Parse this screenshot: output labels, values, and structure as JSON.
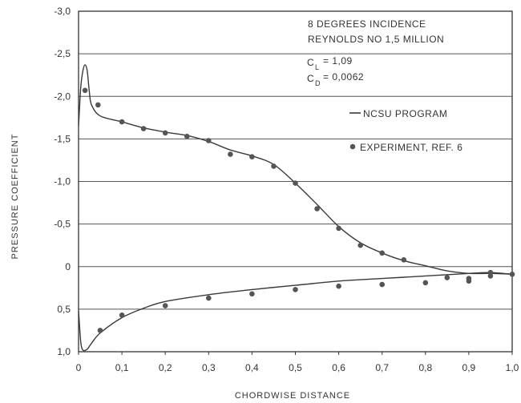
{
  "chart_data": {
    "type": "line",
    "xlabel": "CHORDWISE DISTANCE",
    "ylabel": "PRESSURE COEFFICIENT",
    "xlim": [
      0,
      1.0
    ],
    "ylim": [
      1.0,
      -3.0
    ],
    "y_inverted": true,
    "grid": "horizontal",
    "x_ticks": [
      0,
      0.1,
      0.2,
      0.3,
      0.4,
      0.5,
      0.6,
      0.7,
      0.8,
      0.9,
      1.0
    ],
    "x_tick_labels": [
      "0",
      "0,1",
      "0,2",
      "0,3",
      "0,4",
      "0,5",
      "0,6",
      "0,7",
      "0,8",
      "0,9",
      "1,0"
    ],
    "y_ticks": [
      -3.0,
      -2.5,
      -2.0,
      -1.5,
      -1.0,
      -0.5,
      0,
      0.5,
      1.0
    ],
    "y_tick_labels": [
      "-3,0",
      "-2,5",
      "-2,0",
      "-1,5",
      "-1,0",
      "-0,5",
      "0",
      "0,5",
      "1,0"
    ],
    "annotations": {
      "line1": "8 DEGREES INCIDENCE",
      "line2": "REYNOLDS NO 1,5 MILLION",
      "cl_symbol": "C",
      "cl_sub": "L",
      "cl_value": "= 1,09",
      "cd_symbol": "C",
      "cd_sub": "D",
      "cd_value": "= 0,0062"
    },
    "legend": {
      "placement": "right",
      "line_label": "NCSU PROGRAM",
      "points_label": "EXPERIMENT, REF. 6"
    },
    "series": [
      {
        "name": "NCSU PROGRAM",
        "kind": "line",
        "upper_surface": [
          [
            0.0,
            -1.65
          ],
          [
            0.005,
            -2.1
          ],
          [
            0.01,
            -2.3
          ],
          [
            0.015,
            -2.37
          ],
          [
            0.02,
            -2.3
          ],
          [
            0.025,
            -2.05
          ],
          [
            0.03,
            -1.9
          ],
          [
            0.05,
            -1.77
          ],
          [
            0.1,
            -1.7
          ],
          [
            0.15,
            -1.63
          ],
          [
            0.2,
            -1.58
          ],
          [
            0.25,
            -1.54
          ],
          [
            0.3,
            -1.47
          ],
          [
            0.35,
            -1.37
          ],
          [
            0.4,
            -1.3
          ],
          [
            0.45,
            -1.2
          ],
          [
            0.5,
            -0.98
          ],
          [
            0.55,
            -0.73
          ],
          [
            0.6,
            -0.47
          ],
          [
            0.65,
            -0.28
          ],
          [
            0.7,
            -0.16
          ],
          [
            0.75,
            -0.07
          ],
          [
            0.8,
            -0.01
          ],
          [
            0.85,
            0.05
          ],
          [
            0.9,
            0.08
          ],
          [
            0.95,
            0.08
          ],
          [
            1.0,
            0.09
          ]
        ],
        "lower_surface": [
          [
            0.0,
            0.52
          ],
          [
            0.005,
            0.88
          ],
          [
            0.01,
            0.98
          ],
          [
            0.02,
            0.97
          ],
          [
            0.03,
            0.9
          ],
          [
            0.05,
            0.78
          ],
          [
            0.1,
            0.6
          ],
          [
            0.15,
            0.49
          ],
          [
            0.2,
            0.41
          ],
          [
            0.3,
            0.33
          ],
          [
            0.4,
            0.27
          ],
          [
            0.5,
            0.22
          ],
          [
            0.6,
            0.17
          ],
          [
            0.7,
            0.14
          ],
          [
            0.8,
            0.11
          ],
          [
            0.9,
            0.08
          ],
          [
            0.95,
            0.07
          ],
          [
            1.0,
            0.09
          ]
        ]
      },
      {
        "name": "EXPERIMENT, REF. 6",
        "kind": "scatter",
        "points": [
          [
            0.015,
            -2.07
          ],
          [
            0.045,
            -1.9
          ],
          [
            0.1,
            -1.7
          ],
          [
            0.15,
            -1.62
          ],
          [
            0.2,
            -1.57
          ],
          [
            0.25,
            -1.53
          ],
          [
            0.3,
            -1.48
          ],
          [
            0.35,
            -1.32
          ],
          [
            0.4,
            -1.29
          ],
          [
            0.45,
            -1.18
          ],
          [
            0.5,
            -0.98
          ],
          [
            0.55,
            -0.68
          ],
          [
            0.6,
            -0.45
          ],
          [
            0.65,
            -0.25
          ],
          [
            0.7,
            -0.16
          ],
          [
            0.75,
            -0.08
          ],
          [
            0.85,
            0.13
          ],
          [
            0.9,
            0.14
          ],
          [
            0.95,
            0.11
          ],
          [
            0.05,
            0.75
          ],
          [
            0.1,
            0.57
          ],
          [
            0.2,
            0.46
          ],
          [
            0.3,
            0.37
          ],
          [
            0.4,
            0.32
          ],
          [
            0.5,
            0.27
          ],
          [
            0.6,
            0.23
          ],
          [
            0.7,
            0.21
          ],
          [
            0.8,
            0.19
          ],
          [
            0.9,
            0.17
          ],
          [
            0.95,
            0.07
          ],
          [
            1.0,
            0.09
          ]
        ]
      }
    ]
  }
}
